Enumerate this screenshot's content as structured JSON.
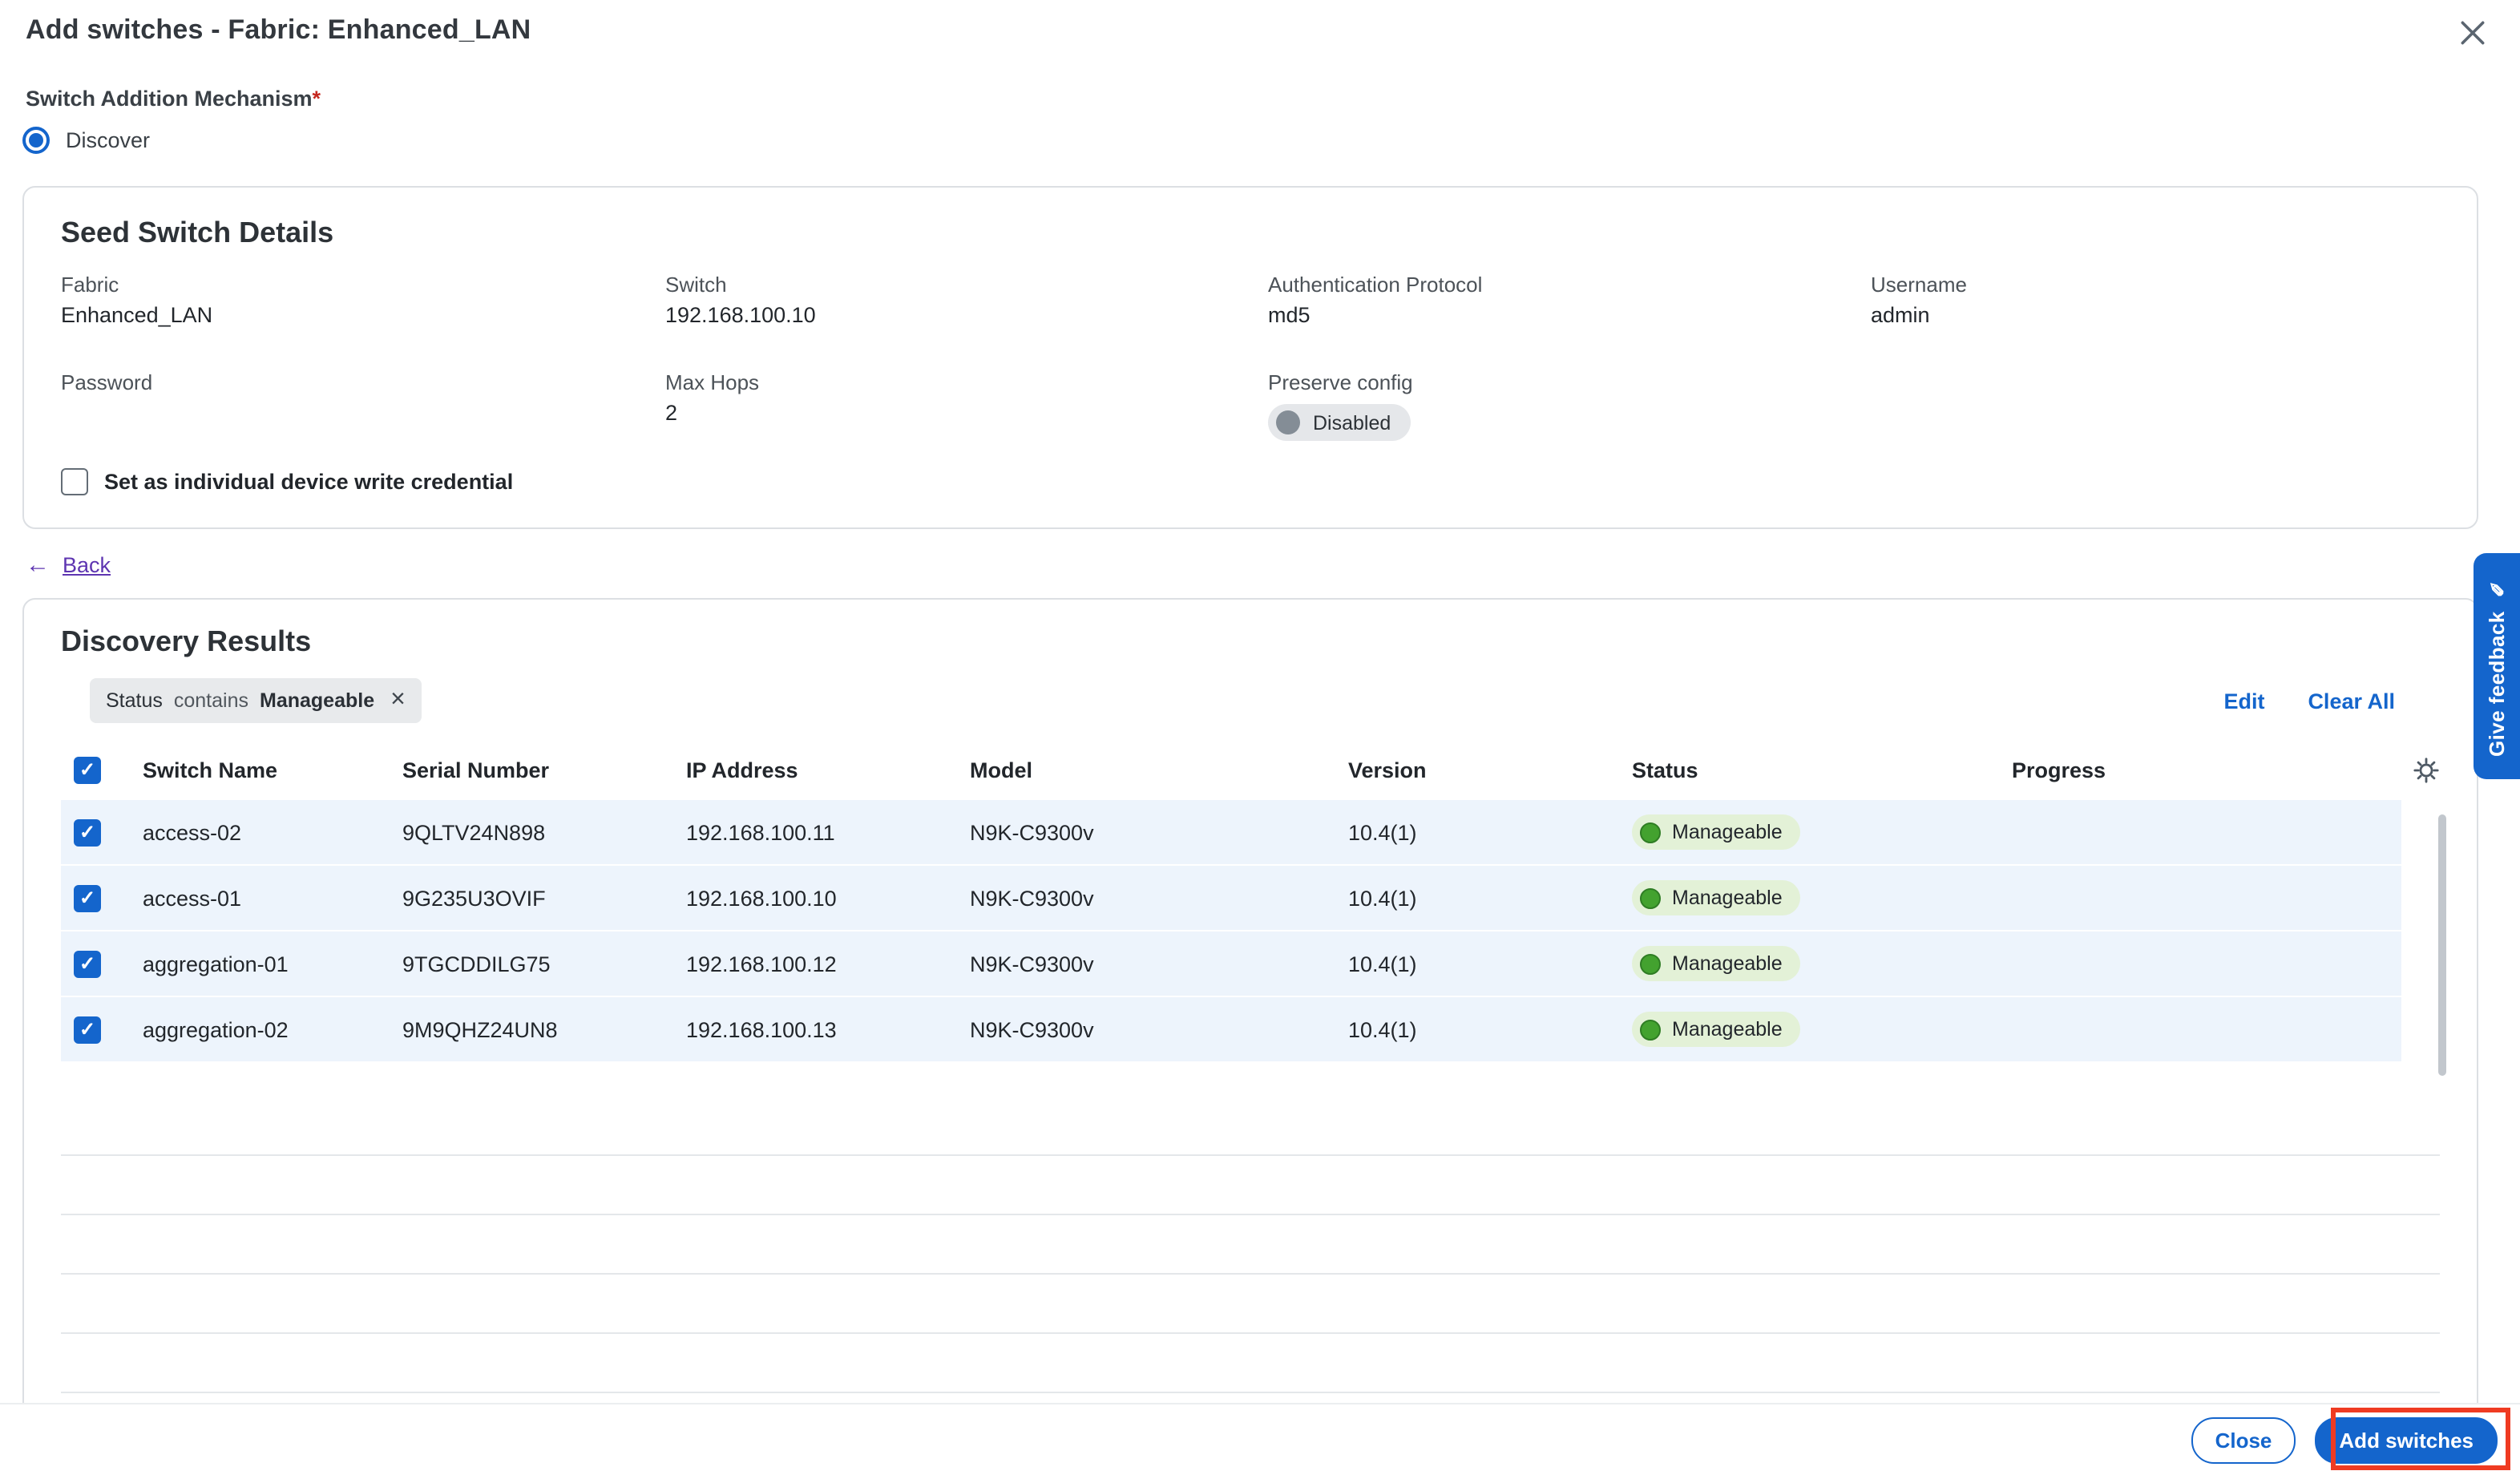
{
  "colors": {
    "accent": "#1465cc",
    "link-purple": "#5e35b1",
    "row-selected": "#edf4fc",
    "badge-green-bg": "#e3f1d7",
    "badge-green-dot": "#43a22f",
    "annotation-red": "#ef3b22"
  },
  "dialog": {
    "title": "Add switches - Fabric: Enhanced_LAN"
  },
  "mechanism": {
    "label": "Switch Addition Mechanism",
    "required": "*",
    "options": [
      {
        "label": "Discover",
        "selected": true
      }
    ]
  },
  "seed": {
    "title": "Seed Switch Details",
    "fabric": {
      "label": "Fabric",
      "value": "Enhanced_LAN"
    },
    "switch": {
      "label": "Switch",
      "value": "192.168.100.10"
    },
    "auth": {
      "label": "Authentication Protocol",
      "value": "md5"
    },
    "username": {
      "label": "Username",
      "value": "admin"
    },
    "password": {
      "label": "Password",
      "value": ""
    },
    "max_hops": {
      "label": "Max Hops",
      "value": "2"
    },
    "preserve_config": {
      "label": "Preserve config",
      "toggle": "Disabled"
    },
    "write_credential_checkbox": "Set as individual device write credential"
  },
  "back": {
    "label": "Back"
  },
  "results": {
    "title": "Discovery Results",
    "filter": {
      "field": "Status",
      "operator": "contains",
      "value": "Manageable"
    },
    "actions": {
      "edit": "Edit",
      "clear_all": "Clear All"
    },
    "table": {
      "columns": [
        "Switch Name",
        "Serial Number",
        "IP Address",
        "Model",
        "Version",
        "Status",
        "Progress"
      ],
      "all_selected": true,
      "rows": [
        {
          "name": "access-02",
          "serial": "9QLTV24N898",
          "ip": "192.168.100.11",
          "model": "N9K-C9300v",
          "version": "10.4(1)",
          "status": "Manageable",
          "selected": true
        },
        {
          "name": "access-01",
          "serial": "9G235U3OVIF",
          "ip": "192.168.100.10",
          "model": "N9K-C9300v",
          "version": "10.4(1)",
          "status": "Manageable",
          "selected": true
        },
        {
          "name": "aggregation-01",
          "serial": "9TGCDDILG75",
          "ip": "192.168.100.12",
          "model": "N9K-C9300v",
          "version": "10.4(1)",
          "status": "Manageable",
          "selected": true
        },
        {
          "name": "aggregation-02",
          "serial": "9M9QHZ24UN8",
          "ip": "192.168.100.13",
          "model": "N9K-C9300v",
          "version": "10.4(1)",
          "status": "Manageable",
          "selected": true
        }
      ],
      "empty_row_count": 5
    }
  },
  "footer": {
    "close": "Close",
    "add": "Add switches"
  },
  "feedback": {
    "label": "Give feedback"
  }
}
